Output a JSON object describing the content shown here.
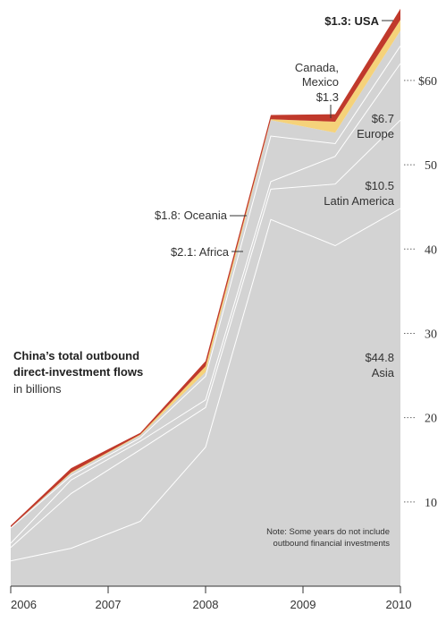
{
  "chart_data": {
    "type": "area",
    "stacked": true,
    "title": "China’s total outbound direct-investment flows",
    "subtitle": "in billions",
    "note": [
      "Note: Some years do not include",
      "outbound financial investments"
    ],
    "x": [
      2006.0,
      2006.62,
      2007.33,
      2008.0,
      2008.67,
      2009.33,
      2010.0
    ],
    "x_ticks": [
      "2006",
      "2007",
      "2008",
      "2009",
      "2010"
    ],
    "y_ticks": [
      "$60",
      "50",
      "40",
      "30",
      "20",
      "10"
    ],
    "ylim": [
      0,
      68.8
    ],
    "series": [
      {
        "name": "Asia",
        "values": [
          3.0,
          4.5,
          7.7,
          16.5,
          43.5,
          40.4,
          44.8
        ]
      },
      {
        "name": "Latin America",
        "values": [
          1.6,
          6.5,
          8.5,
          4.7,
          3.6,
          7.3,
          10.5
        ]
      },
      {
        "name": "Europe",
        "values": [
          0.5,
          1.6,
          1.0,
          0.9,
          0.9,
          3.3,
          6.7
        ]
      },
      {
        "name": "Africa",
        "values": [
          1.8,
          0.5,
          0.4,
          2.8,
          5.4,
          1.5,
          2.1
        ]
      },
      {
        "name": "Oceania",
        "values": [
          0.1,
          0.3,
          0.3,
          0.5,
          1.9,
          1.3,
          1.8
        ]
      },
      {
        "name": "Canada, Mexico",
        "values": [
          0.0,
          0.1,
          0.1,
          0.7,
          0.1,
          1.3,
          1.3
        ]
      },
      {
        "name": "USA",
        "values": [
          0.2,
          0.5,
          0.2,
          0.6,
          0.5,
          0.9,
          1.3
        ]
      }
    ],
    "colors": {
      "Asia": "#d3d3d3",
      "Latin America": "#d3d3d3",
      "Europe": "#d3d3d3",
      "Africa": "#d3d3d3",
      "Oceania": "#d3d3d3",
      "Canada, Mexico": "#f5d27a",
      "USA": "#c0392b",
      "separator": "#ffffff"
    },
    "labels": {
      "usa": "$1.3: USA",
      "canada_mexico": [
        "Canada,",
        "Mexico",
        "$1.3"
      ],
      "europe": [
        "$6.7",
        "Europe"
      ],
      "latin_america": [
        "$10.5",
        "Latin America"
      ],
      "oceania": "$1.8: Oceania",
      "africa": "$2.1: Africa",
      "asia": [
        "$44.8",
        "Asia"
      ]
    }
  }
}
